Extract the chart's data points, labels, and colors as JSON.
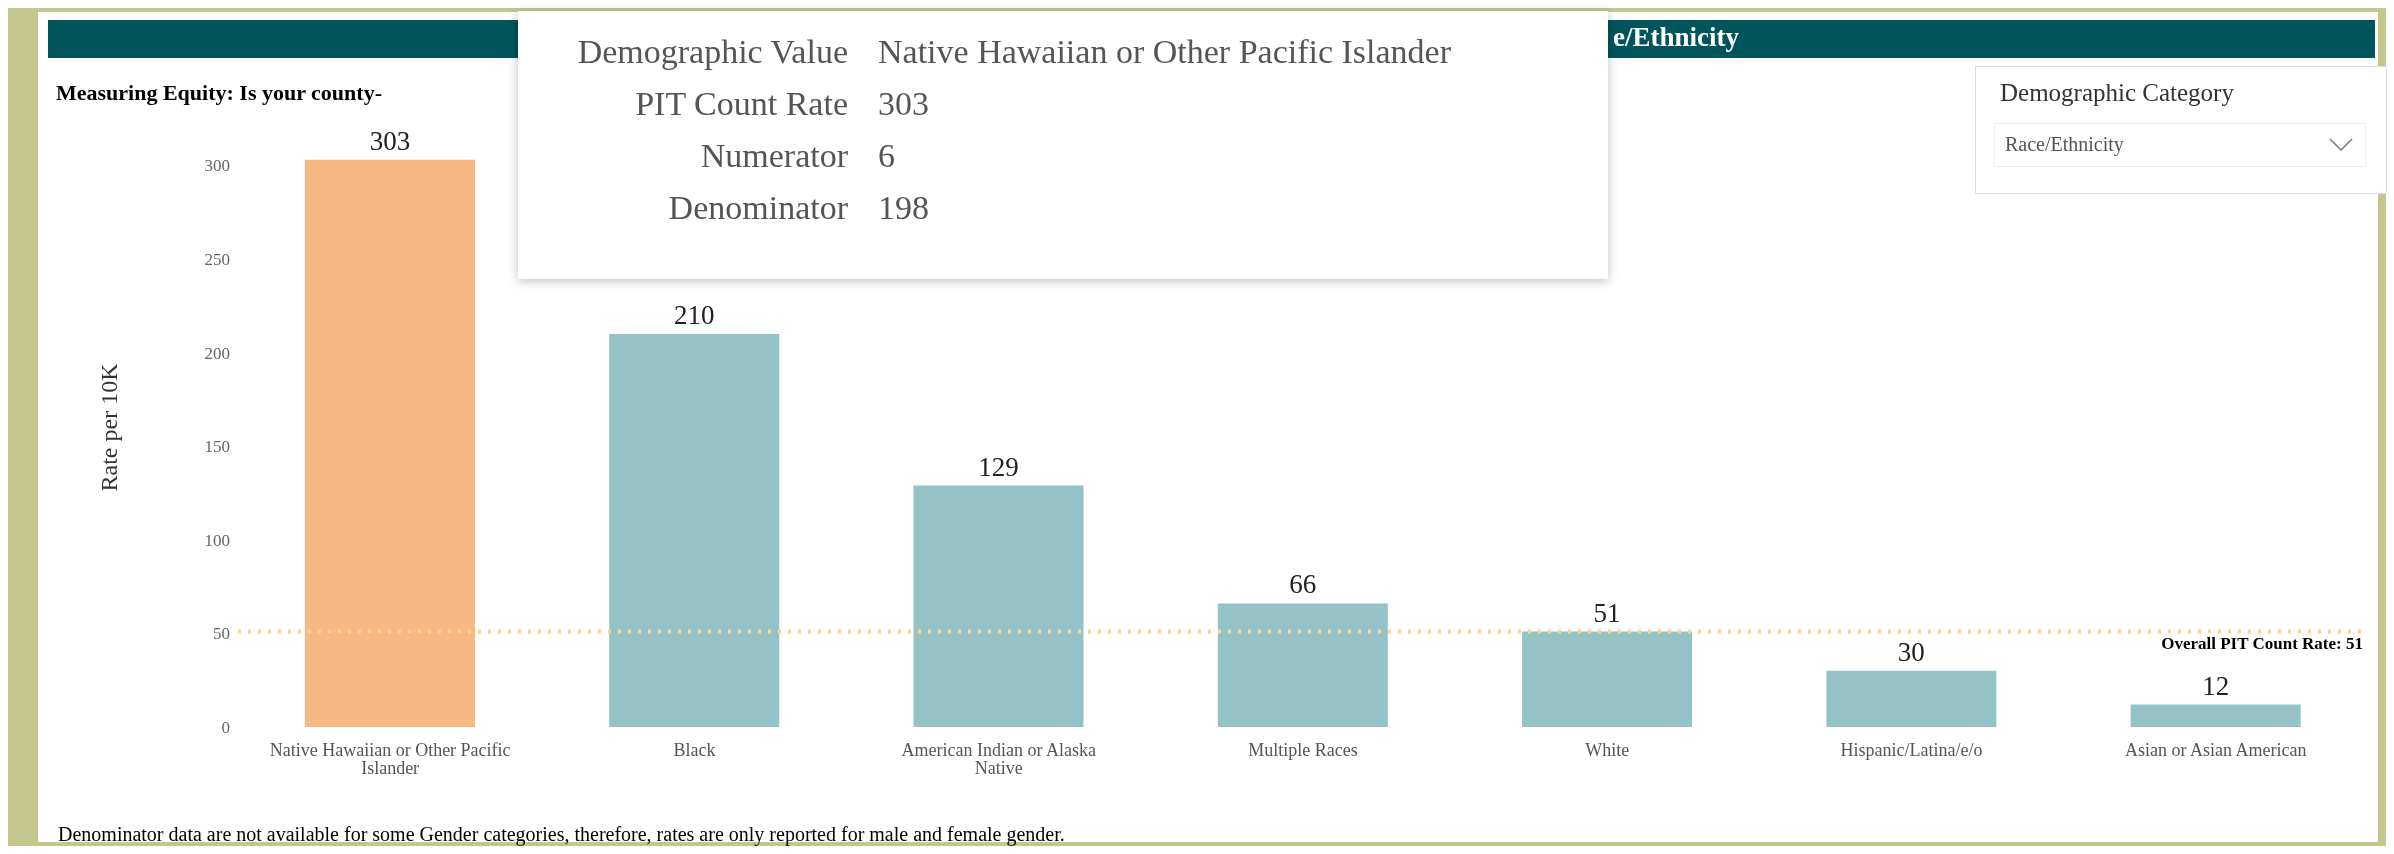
{
  "chart_data": {
    "type": "bar",
    "title": "e/Ethnicity",
    "subtitle": "Measuring Equity: Is your county-",
    "ylabel": "Rate per 10K",
    "categories": [
      "Native Hawaiian or Other Pacific Islander",
      "Black",
      "American Indian or Alaska Native",
      "Multiple Races",
      "White",
      "Hispanic/Latina/e/o",
      "Asian or Asian American"
    ],
    "values": [
      303,
      210,
      129,
      66,
      51,
      30,
      12
    ],
    "colors": [
      "#f8b882",
      "#94c2c6",
      "#94c2c6",
      "#94c2c6",
      "#94c2c6",
      "#94c2c6",
      "#94c2c6"
    ],
    "ylim": [
      0,
      320
    ],
    "yticks": [
      0,
      50,
      100,
      150,
      200,
      250,
      300
    ],
    "grid": false,
    "data_labels": true,
    "ref_lines": [
      {
        "axis": "y",
        "value": 51,
        "label": "Overall PIT Count Rate: 51",
        "color": "#fcd48c",
        "line_style": "dotted"
      }
    ],
    "annotations": [
      "Demographic Category",
      "Race/Ethnicity",
      "Demographic Value",
      "Native Hawaiian or Other Pacific Islander",
      "PIT Count Rate",
      "303",
      "Numerator",
      "6",
      "Denominator",
      "198",
      "Denominator data are not available for some Gender categories, therefore, rates are only reported for male and female gender."
    ]
  }
}
